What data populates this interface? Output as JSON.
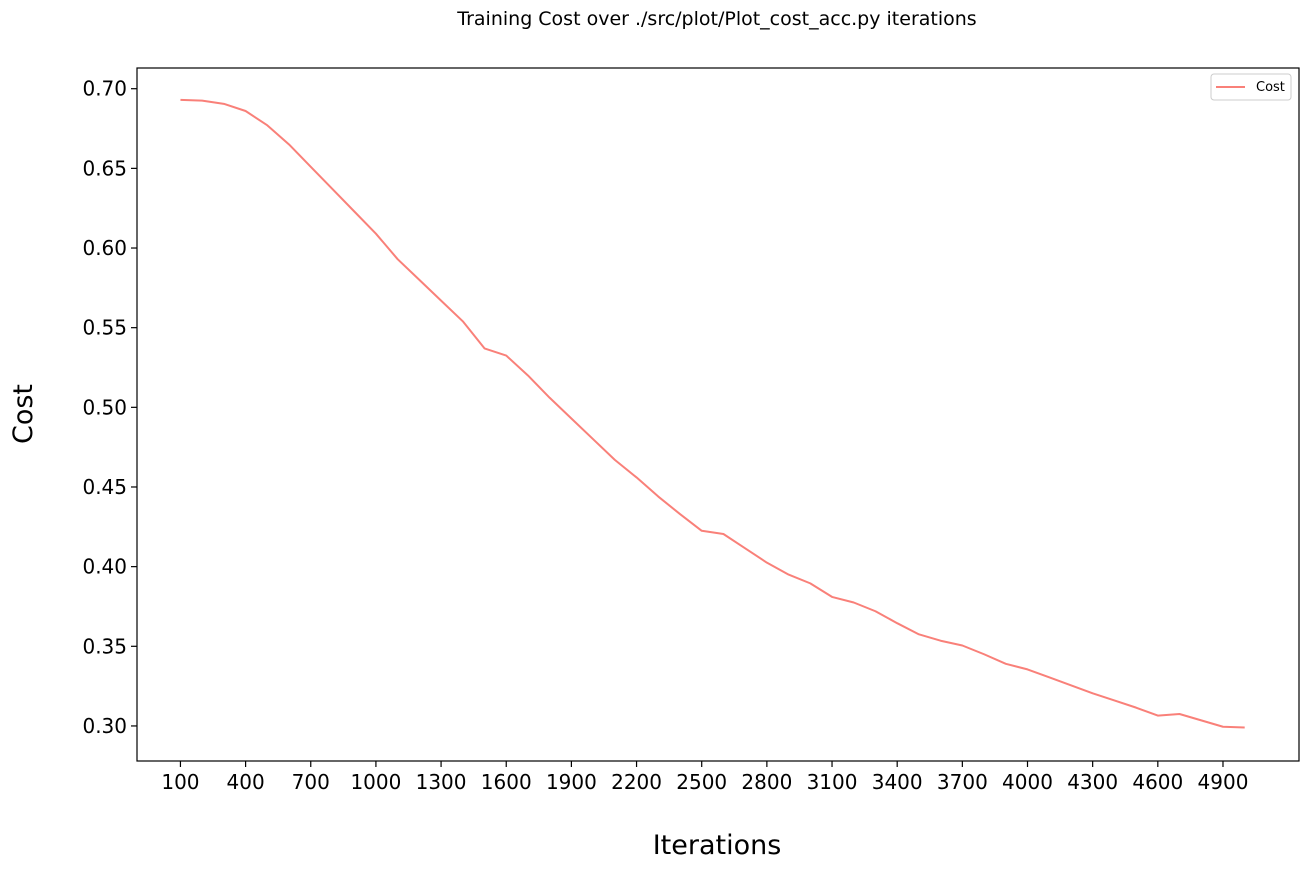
{
  "chart_data": {
    "type": "line",
    "title": "Training Cost over ./src/plot/Plot_cost_acc.py iterations",
    "xlabel": "Iterations",
    "ylabel": "Cost",
    "xlim": [
      -100,
      5250
    ],
    "ylim": [
      0.278,
      0.713
    ],
    "x_ticks": [
      100,
      400,
      700,
      1000,
      1300,
      1600,
      1900,
      2200,
      2500,
      2800,
      3100,
      3400,
      3700,
      4000,
      4300,
      4600,
      4900
    ],
    "y_ticks": [
      0.3,
      0.35,
      0.4,
      0.45,
      0.5,
      0.55,
      0.6,
      0.65,
      0.7
    ],
    "legend": {
      "position": "upper-right"
    },
    "grid": false,
    "series": [
      {
        "name": "Cost",
        "color": "#f98079",
        "x": [
          100,
          200,
          300,
          400,
          500,
          600,
          700,
          800,
          900,
          1000,
          1100,
          1200,
          1300,
          1400,
          1500,
          1600,
          1700,
          1800,
          1900,
          2000,
          2100,
          2200,
          2300,
          2400,
          2500,
          2600,
          2700,
          2800,
          2900,
          3000,
          3100,
          3200,
          3300,
          3400,
          3500,
          3600,
          3700,
          3800,
          3900,
          4000,
          4100,
          4200,
          4300,
          4400,
          4500,
          4600,
          4700,
          4800,
          4900,
          5000
        ],
        "values": [
          0.693,
          0.6925,
          0.6905,
          0.686,
          0.677,
          0.665,
          0.651,
          0.637,
          0.623,
          0.609,
          0.593,
          0.58,
          0.567,
          0.554,
          0.537,
          0.5325,
          0.52,
          0.506,
          0.493,
          0.48,
          0.467,
          0.456,
          0.444,
          0.433,
          0.4225,
          0.4205,
          0.4115,
          0.4025,
          0.395,
          0.3895,
          0.381,
          0.3775,
          0.372,
          0.3645,
          0.3575,
          0.3535,
          0.3505,
          0.345,
          0.339,
          0.3355,
          0.3305,
          0.3255,
          0.3205,
          0.316,
          0.3115,
          0.3065,
          0.3075,
          0.3035,
          0.2995,
          0.299
        ]
      }
    ]
  }
}
